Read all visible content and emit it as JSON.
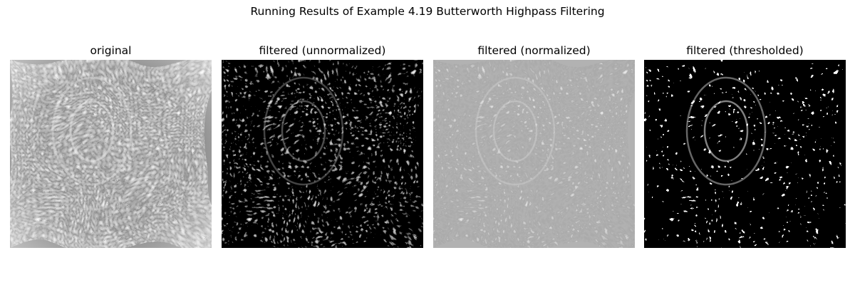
{
  "figure": {
    "title": "Running Results of Example 4.19 Butterworth Highpass Filtering"
  },
  "panels": [
    {
      "title": "original",
      "image": "fingerprint-original"
    },
    {
      "title": "filtered (unnormalized)",
      "image": "fingerprint-highpass-unnormalized"
    },
    {
      "title": "filtered (normalized)",
      "image": "fingerprint-highpass-normalized"
    },
    {
      "title": "filtered (thresholded)",
      "image": "fingerprint-highpass-thresholded"
    }
  ]
}
